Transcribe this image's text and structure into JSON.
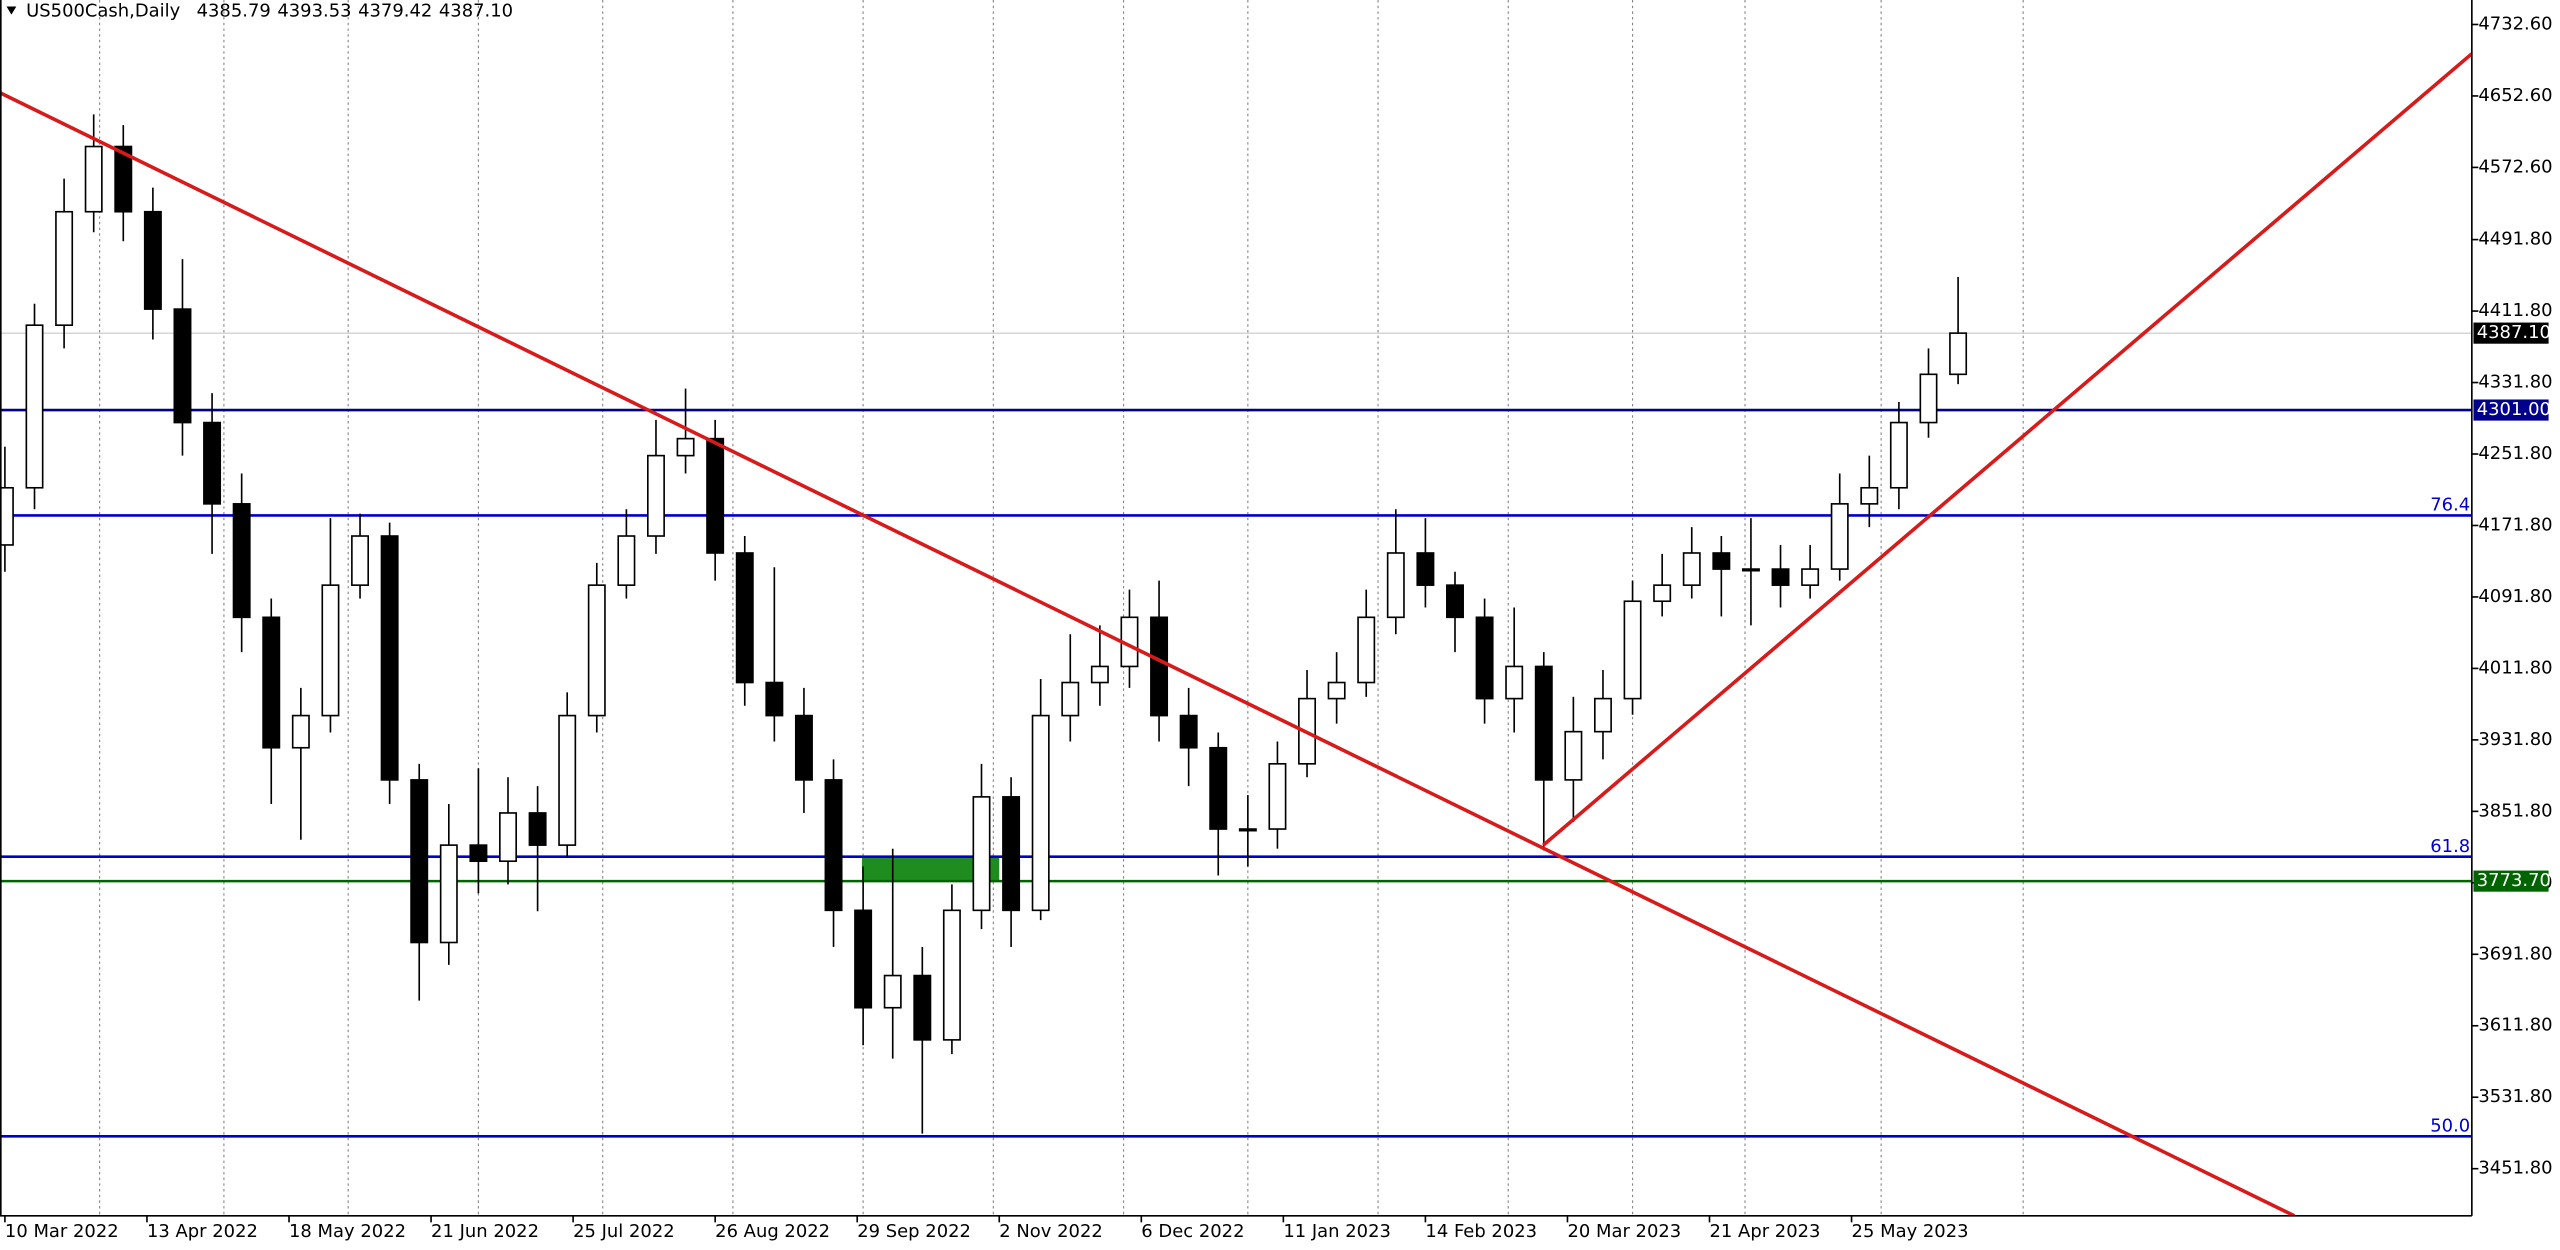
{
  "chart_data": {
    "type": "candlestick",
    "symbol": "US500Cash,Daily",
    "info": [
      "4385.79",
      "4393.53",
      "4379.42",
      "4387.10"
    ],
    "x": [
      0,
      5,
      10,
      15,
      20,
      25,
      30,
      35,
      40,
      45,
      50,
      55,
      60,
      65,
      70,
      75,
      80,
      85,
      90,
      95,
      100,
      105,
      110,
      115,
      120,
      125,
      130,
      135,
      140,
      145,
      150,
      155,
      160,
      165,
      170,
      175,
      180,
      185,
      190,
      195,
      200,
      205,
      210,
      215,
      220,
      225,
      230,
      235,
      240,
      245,
      250,
      255,
      260,
      265,
      270,
      275,
      280,
      285,
      290,
      295,
      300,
      305,
      310,
      315,
      320,
      325,
      330
    ],
    "open": [
      4150,
      4214,
      4396,
      4523,
      4596,
      4523,
      4414,
      4287,
      4196,
      4069,
      3923,
      3959,
      4105,
      4160,
      3887,
      3705,
      3814,
      3796,
      3850,
      3814,
      3959,
      4105,
      4160,
      4250,
      4269,
      4141,
      3996,
      3959,
      3887,
      3741,
      3632,
      3668,
      3596,
      3741,
      3868,
      3741,
      3959,
      3996,
      4014,
      4069,
      3959,
      3923,
      3832,
      3832,
      3905,
      3978,
      3996,
      4069,
      4141,
      4105,
      4069,
      3978,
      4014,
      3887,
      3941,
      3978,
      4087,
      4105,
      4141,
      4123,
      4123,
      4105,
      4123,
      4196,
      4214,
      4287,
      4341
    ],
    "high": [
      4260,
      4420,
      4560,
      4632,
      4620,
      4550,
      4470,
      4320,
      4230,
      4090,
      3990,
      4180,
      4185,
      4175,
      3905,
      3860,
      3900,
      3890,
      3880,
      3985,
      4130,
      4190,
      4290,
      4325,
      4290,
      4160,
      4125,
      3990,
      3910,
      3790,
      3810,
      3700,
      3770,
      3905,
      3890,
      4000,
      4050,
      4060,
      4100,
      4110,
      3990,
      3940,
      3870,
      3930,
      4010,
      4030,
      4100,
      4190,
      4180,
      4120,
      4090,
      4080,
      4030,
      3980,
      4010,
      4110,
      4140,
      4170,
      4160,
      4180,
      4150,
      4150,
      4230,
      4250,
      4310,
      4370,
      4450
    ],
    "low": [
      4120,
      4190,
      4370,
      4500,
      4490,
      4380,
      4250,
      4140,
      4030,
      3860,
      3820,
      3940,
      4090,
      3860,
      3640,
      3680,
      3760,
      3770,
      3740,
      3800,
      3940,
      4090,
      4140,
      4230,
      4110,
      3970,
      3930,
      3850,
      3700,
      3590,
      3575,
      3491,
      3580,
      3720,
      3700,
      3730,
      3930,
      3970,
      3990,
      3930,
      3880,
      3780,
      3790,
      3810,
      3890,
      3950,
      3980,
      4050,
      4080,
      4030,
      3950,
      3940,
      3808,
      3840,
      3910,
      3960,
      4070,
      4090,
      4070,
      4060,
      4080,
      4090,
      4110,
      4170,
      4190,
      4270,
      4330
    ],
    "close": [
      4214,
      4396,
      4523,
      4596,
      4523,
      4414,
      4287,
      4196,
      4069,
      3923,
      3959,
      4105,
      4160,
      3887,
      3705,
      3814,
      3796,
      3850,
      3814,
      3959,
      4105,
      4160,
      4250,
      4269,
      4141,
      3996,
      3959,
      3887,
      3741,
      3632,
      3668,
      3596,
      3741,
      3868,
      3741,
      3959,
      3996,
      4014,
      4069,
      3959,
      3923,
      3832,
      3832,
      3905,
      3978,
      3996,
      4069,
      4141,
      4105,
      4069,
      3978,
      4014,
      3887,
      3941,
      3978,
      4087,
      4105,
      4141,
      4123,
      4123,
      4105,
      4123,
      4196,
      4214,
      4287,
      4341,
      4387.1
    ],
    "xlim": [
      -0.83,
      416.8
    ],
    "ylim": [
      3399,
      4760
    ],
    "xticks": [
      {
        "value": 0,
        "label": "10 Mar 2022"
      },
      {
        "value": 24,
        "label": "13 Apr 2022"
      },
      {
        "value": 48,
        "label": "18 May 2022"
      },
      {
        "value": 72,
        "label": "21 Jun 2022"
      },
      {
        "value": 96,
        "label": "25 Jul 2022"
      },
      {
        "value": 120,
        "label": "26 Aug 2022"
      },
      {
        "value": 144,
        "label": "29 Sep 2022"
      },
      {
        "value": 168,
        "label": "2 Nov 2022"
      },
      {
        "value": 192,
        "label": "6 Dec 2022"
      },
      {
        "value": 216,
        "label": "11 Jan 2023"
      },
      {
        "value": 240,
        "label": "14 Feb 2023"
      },
      {
        "value": 264,
        "label": "20 Mar 2023"
      },
      {
        "value": 288,
        "label": "21 Apr 2023"
      },
      {
        "value": 312,
        "label": "25 May 2023"
      }
    ],
    "xgrid": [
      16,
      37,
      58,
      80,
      101,
      123,
      145,
      167,
      189,
      210,
      232,
      254,
      275,
      294,
      317,
      341
    ],
    "yticks": [
      {
        "value": 4732.6,
        "label": "4732.60"
      },
      {
        "value": 4652.6,
        "label": "4652.60"
      },
      {
        "value": 4572.6,
        "label": "4572.60"
      },
      {
        "value": 4491.8,
        "label": "4491.80"
      },
      {
        "value": 4411.8,
        "label": "4411.80"
      },
      {
        "value": 4331.8,
        "label": "4331.80"
      },
      {
        "value": 4251.8,
        "label": "4251.80"
      },
      {
        "value": 4171.8,
        "label": "4171.80"
      },
      {
        "value": 4091.8,
        "label": "4091.80"
      },
      {
        "value": 4011.8,
        "label": "4011.80"
      },
      {
        "value": 3931.8,
        "label": "3931.80"
      },
      {
        "value": 3851.8,
        "label": "3851.80"
      },
      {
        "value": 3771.8,
        "label": "3771.80"
      },
      {
        "value": 3691.8,
        "label": "3691.80"
      },
      {
        "value": 3611.8,
        "label": "3611.80"
      },
      {
        "value": 3531.8,
        "label": "3531.80"
      },
      {
        "value": 3451.8,
        "label": "3451.80"
      }
    ],
    "current_price": {
      "value": 4387.1,
      "label": "4387.10"
    },
    "levels": [
      {
        "value": 4301,
        "label": "4301.00",
        "color": "#00008b",
        "style": "box"
      },
      {
        "value": 4183,
        "label": "76.4",
        "color": "#0000cd",
        "style": "text"
      },
      {
        "value": 3801,
        "label": "61.8",
        "color": "#0000cd",
        "style": "text"
      },
      {
        "value": 3773.7,
        "label": "3773.70",
        "color": "#006400",
        "style": "box"
      },
      {
        "value": 3488,
        "label": "50.0",
        "color": "#0000cd",
        "style": "text"
      }
    ],
    "zones": [
      {
        "x": [
          144.8,
          168
        ],
        "y": [
          3773.7,
          3801
        ],
        "color": "#1e8c1e"
      }
    ],
    "trendlines": [
      {
        "x": [
          -0.83,
          386.8
        ],
        "y": [
          4656.2,
          3399.1
        ],
        "color": "#d91a1a"
      },
      {
        "x": [
          259.9,
          416.8
        ],
        "y": [
          3813.9,
          4699.9
        ],
        "color": "#d91a1a"
      }
    ]
  }
}
